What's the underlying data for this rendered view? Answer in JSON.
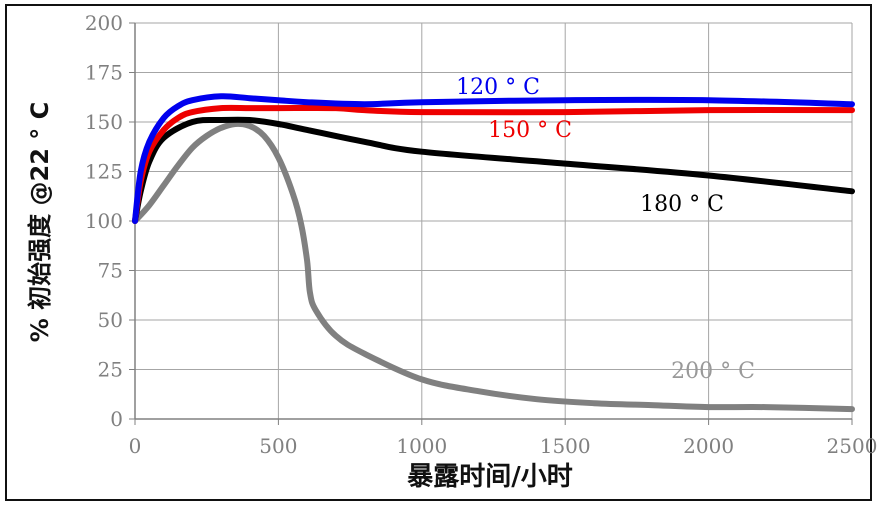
{
  "chart_data": {
    "type": "line",
    "title": "",
    "xlabel": "暴露时间/小时",
    "ylabel": "% 初始强度 @22 ° C",
    "xlim": [
      0,
      2500
    ],
    "ylim": [
      0,
      200
    ],
    "x_ticks": [
      "0",
      "500",
      "1000",
      "1500",
      "2000",
      "2500"
    ],
    "y_ticks": [
      "0",
      "25",
      "50",
      "75",
      "100",
      "125",
      "150",
      "175",
      "200"
    ],
    "grid": true,
    "legend": "inline labels",
    "series": [
      {
        "name": "120 ° C",
        "color": "#0000ee",
        "points": [
          [
            0,
            100
          ],
          [
            20,
            125
          ],
          [
            50,
            140
          ],
          [
            100,
            152
          ],
          [
            150,
            158
          ],
          [
            200,
            161
          ],
          [
            300,
            163
          ],
          [
            400,
            162
          ],
          [
            500,
            161
          ],
          [
            600,
            160
          ],
          [
            800,
            159
          ],
          [
            1000,
            160
          ],
          [
            1500,
            161
          ],
          [
            2000,
            161
          ],
          [
            2500,
            159
          ]
        ]
      },
      {
        "name": "150 ° C",
        "color": "#ee0000",
        "points": [
          [
            0,
            100
          ],
          [
            20,
            120
          ],
          [
            50,
            135
          ],
          [
            100,
            146
          ],
          [
            150,
            152
          ],
          [
            200,
            155
          ],
          [
            300,
            157
          ],
          [
            400,
            157
          ],
          [
            500,
            157
          ],
          [
            700,
            157
          ],
          [
            800,
            156
          ],
          [
            1000,
            155
          ],
          [
            1500,
            155
          ],
          [
            2000,
            156
          ],
          [
            2500,
            156
          ]
        ]
      },
      {
        "name": "180 ° C",
        "color": "#000000",
        "points": [
          [
            0,
            100
          ],
          [
            20,
            115
          ],
          [
            50,
            130
          ],
          [
            100,
            142
          ],
          [
            200,
            150
          ],
          [
            300,
            151
          ],
          [
            400,
            151
          ],
          [
            500,
            149
          ],
          [
            600,
            146
          ],
          [
            800,
            140
          ],
          [
            1000,
            135
          ],
          [
            1500,
            129
          ],
          [
            2000,
            123
          ],
          [
            2500,
            115
          ]
        ]
      },
      {
        "name": "200 ° C",
        "color": "#808080",
        "points": [
          [
            0,
            100
          ],
          [
            50,
            108
          ],
          [
            100,
            118
          ],
          [
            150,
            128
          ],
          [
            200,
            137
          ],
          [
            250,
            143
          ],
          [
            300,
            147
          ],
          [
            350,
            149
          ],
          [
            400,
            148
          ],
          [
            450,
            143
          ],
          [
            500,
            132
          ],
          [
            550,
            114
          ],
          [
            580,
            98
          ],
          [
            600,
            80
          ],
          [
            610,
            64
          ],
          [
            630,
            55
          ],
          [
            700,
            42
          ],
          [
            800,
            33
          ],
          [
            1000,
            20
          ],
          [
            1200,
            14
          ],
          [
            1400,
            10
          ],
          [
            1600,
            8
          ],
          [
            1800,
            7
          ],
          [
            2000,
            6
          ],
          [
            2200,
            6
          ],
          [
            2500,
            5
          ]
        ]
      }
    ]
  }
}
